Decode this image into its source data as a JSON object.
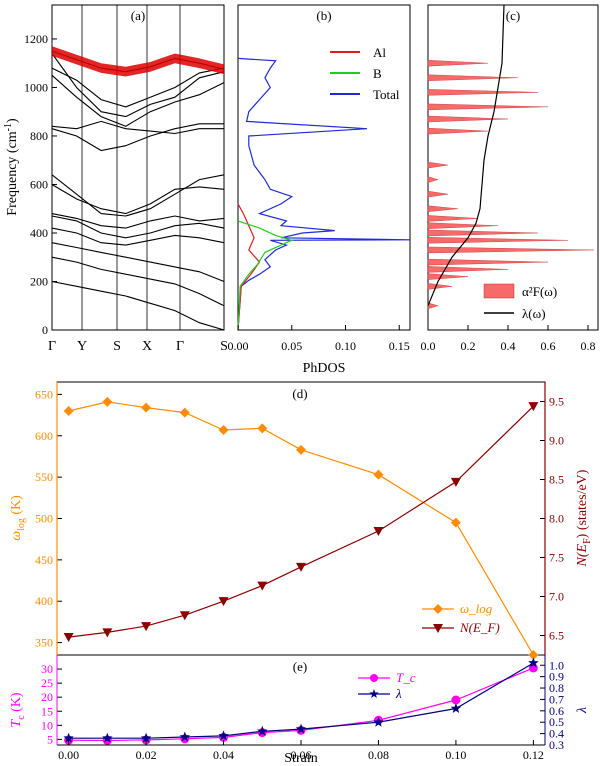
{
  "chart_data": [
    {
      "panel": "(a)",
      "type": "line",
      "ylabel_main": "Frequency (cm",
      "ylabel_sup": "-1",
      "ylabel_end": ")",
      "ylim": [
        0,
        1340
      ],
      "yticks": [
        0,
        200,
        400,
        600,
        800,
        1000,
        1200
      ],
      "kpath": [
        "Γ",
        "Y",
        "S",
        "X",
        "Γ",
        "S"
      ],
      "bands": [
        [
          1150,
          1115,
          1080,
          1065,
          1085,
          1120,
          1100,
          1075
        ],
        [
          1140,
          1000,
          900,
          880,
          930,
          960,
          1040,
          1065
        ],
        [
          1080,
          1030,
          950,
          920,
          960,
          1000,
          1060,
          1080
        ],
        [
          1050,
          960,
          880,
          840,
          900,
          940,
          970,
          1020
        ],
        [
          840,
          830,
          860,
          830,
          820,
          810,
          830,
          830
        ],
        [
          830,
          800,
          740,
          760,
          800,
          830,
          850,
          850
        ],
        [
          640,
          560,
          480,
          470,
          500,
          560,
          620,
          640
        ],
        [
          600,
          540,
          500,
          480,
          520,
          580,
          590,
          580
        ],
        [
          480,
          460,
          430,
          420,
          450,
          470,
          450,
          460
        ],
        [
          470,
          450,
          400,
          380,
          400,
          430,
          440,
          420
        ],
        [
          420,
          400,
          360,
          350,
          370,
          390,
          380,
          360
        ],
        [
          360,
          340,
          320,
          300,
          280,
          260,
          240,
          200
        ],
        [
          300,
          280,
          250,
          230,
          210,
          190,
          150,
          100
        ],
        [
          200,
          180,
          160,
          140,
          110,
          80,
          30,
          0
        ]
      ]
    },
    {
      "panel": "(b)",
      "type": "line",
      "xlabel": "PhDOS",
      "xlim": [
        0,
        0.16
      ],
      "xticks": [
        "0.00",
        "0.05",
        "0.10",
        "0.15"
      ],
      "legend": [
        "Al",
        "B",
        "Total"
      ],
      "colors": {
        "Al": "#e41a1c",
        "B": "#22cc22",
        "Total": "#1f2bd6"
      },
      "total": [
        [
          0,
          0
        ],
        [
          0.003,
          180
        ],
        [
          0.01,
          205
        ],
        [
          0.02,
          230
        ],
        [
          0.03,
          260
        ],
        [
          0.025,
          290
        ],
        [
          0.035,
          330
        ],
        [
          0.045,
          350
        ],
        [
          0.03,
          370
        ],
        [
          0.16,
          372
        ],
        [
          0.04,
          380
        ],
        [
          0.06,
          400
        ],
        [
          0.09,
          410
        ],
        [
          0.04,
          430
        ],
        [
          0.045,
          450
        ],
        [
          0.02,
          480
        ],
        [
          0.04,
          520
        ],
        [
          0.05,
          550
        ],
        [
          0.03,
          580
        ],
        [
          0.025,
          620
        ],
        [
          0.015,
          680
        ],
        [
          0.01,
          760
        ],
        [
          0.01,
          800
        ],
        [
          0.12,
          830
        ],
        [
          0.008,
          860
        ],
        [
          0.01,
          900
        ],
        [
          0.02,
          950
        ],
        [
          0.03,
          1000
        ],
        [
          0.025,
          1040
        ],
        [
          0.03,
          1080
        ],
        [
          0.035,
          1110
        ],
        [
          0.0,
          1120
        ]
      ],
      "al": [
        [
          0,
          0
        ],
        [
          0.003,
          180
        ],
        [
          0.012,
          230
        ],
        [
          0.02,
          280
        ],
        [
          0.01,
          330
        ],
        [
          0.015,
          380
        ],
        [
          0.01,
          430
        ],
        [
          0.005,
          480
        ],
        [
          0.0,
          520
        ]
      ],
      "b": [
        [
          0,
          0
        ],
        [
          0.002,
          180
        ],
        [
          0.01,
          230
        ],
        [
          0.018,
          270
        ],
        [
          0.025,
          320
        ],
        [
          0.04,
          350
        ],
        [
          0.05,
          370
        ],
        [
          0.035,
          390
        ],
        [
          0.02,
          420
        ],
        [
          0.0,
          450
        ]
      ]
    },
    {
      "panel": "(c)",
      "type": "area",
      "xlim": [
        0,
        0.85
      ],
      "xticks": [
        "0.0",
        "0.2",
        "0.4",
        "0.6",
        "0.8"
      ],
      "legend_series": [
        "α²F(ω)",
        "λ(ω)"
      ],
      "a2f": [
        [
          0.05,
          100
        ],
        [
          0.12,
          180
        ],
        [
          0.2,
          220
        ],
        [
          0.4,
          250
        ],
        [
          0.6,
          280
        ],
        [
          0.83,
          330
        ],
        [
          0.7,
          370
        ],
        [
          0.55,
          400
        ],
        [
          0.35,
          430
        ],
        [
          0.25,
          460
        ],
        [
          0.15,
          500
        ],
        [
          0.1,
          560
        ],
        [
          0.05,
          620
        ],
        [
          0.1,
          680
        ],
        [
          0.3,
          820
        ],
        [
          0.4,
          870
        ],
        [
          0.6,
          920
        ],
        [
          0.55,
          980
        ],
        [
          0.45,
          1040
        ],
        [
          0.3,
          1100
        ]
      ],
      "lambda": [
        [
          0.0,
          100
        ],
        [
          0.05,
          200
        ],
        [
          0.12,
          300
        ],
        [
          0.2,
          380
        ],
        [
          0.24,
          440
        ],
        [
          0.26,
          500
        ],
        [
          0.27,
          600
        ],
        [
          0.28,
          700
        ],
        [
          0.3,
          800
        ],
        [
          0.33,
          900
        ],
        [
          0.35,
          1000
        ],
        [
          0.37,
          1100
        ],
        [
          0.38,
          1340
        ]
      ]
    },
    {
      "panel": "(d)",
      "type": "line",
      "x": [
        0.0,
        0.01,
        0.02,
        0.03,
        0.04,
        0.05,
        0.06,
        0.08,
        0.1,
        0.12
      ],
      "ylabel_left": "ω",
      "ylabel_left_sub": "log",
      "ylabel_left_unit": " (K)",
      "ylabel_right": "N(E",
      "ylabel_right_sub": "F",
      "ylabel_right_unit": ") (states/eV)",
      "ylim_left": [
        335,
        665
      ],
      "ylim_right": [
        6.25,
        9.75
      ],
      "yticks_left": [
        350,
        400,
        450,
        500,
        550,
        600,
        650
      ],
      "yticks_right": [
        6.5,
        7.0,
        7.5,
        8.0,
        8.5,
        9.0,
        9.5
      ],
      "series": [
        {
          "name": "ω_log",
          "axis": "left",
          "color": "#ff8c00",
          "values": [
            630,
            641,
            634,
            628,
            607,
            609,
            583,
            553,
            495,
            335
          ]
        },
        {
          "name": "N(E_F)",
          "axis": "right",
          "color": "#8b0000",
          "values": [
            6.48,
            6.54,
            6.62,
            6.76,
            6.94,
            7.14,
            7.38,
            7.84,
            8.47,
            9.44
          ]
        }
      ]
    },
    {
      "panel": "(e)",
      "type": "line",
      "x": [
        0.0,
        0.01,
        0.02,
        0.03,
        0.04,
        0.05,
        0.06,
        0.08,
        0.1,
        0.12
      ],
      "xlabel": "Strain",
      "xlim": [
        -0.003,
        0.123
      ],
      "xticks": [
        "0.00",
        "0.02",
        "0.04",
        "0.06",
        "0.08",
        "0.10",
        "0.12"
      ],
      "ylabel_left": "T",
      "ylabel_left_sub": "c",
      "ylabel_left_unit": " (K)",
      "ylabel_right": "λ",
      "ylim_left": [
        3.0,
        35.0
      ],
      "ylim_right": [
        0.3,
        1.09
      ],
      "yticks_left": [
        5,
        10,
        15,
        20,
        25,
        30
      ],
      "yticks_right": [
        0.3,
        0.4,
        0.5,
        0.6,
        0.7,
        0.8,
        0.9,
        1.0
      ],
      "series": [
        {
          "name": "T_c",
          "axis": "left",
          "color": "#ff00ff",
          "values": [
            4.7,
            4.6,
            4.8,
            5.2,
            5.7,
            7.4,
            8.2,
            11.8,
            19.0,
            30.4
          ]
        },
        {
          "name": "λ",
          "axis": "right",
          "color": "#000080",
          "values": [
            0.36,
            0.36,
            0.36,
            0.37,
            0.38,
            0.42,
            0.44,
            0.5,
            0.62,
            1.02
          ]
        }
      ]
    }
  ]
}
